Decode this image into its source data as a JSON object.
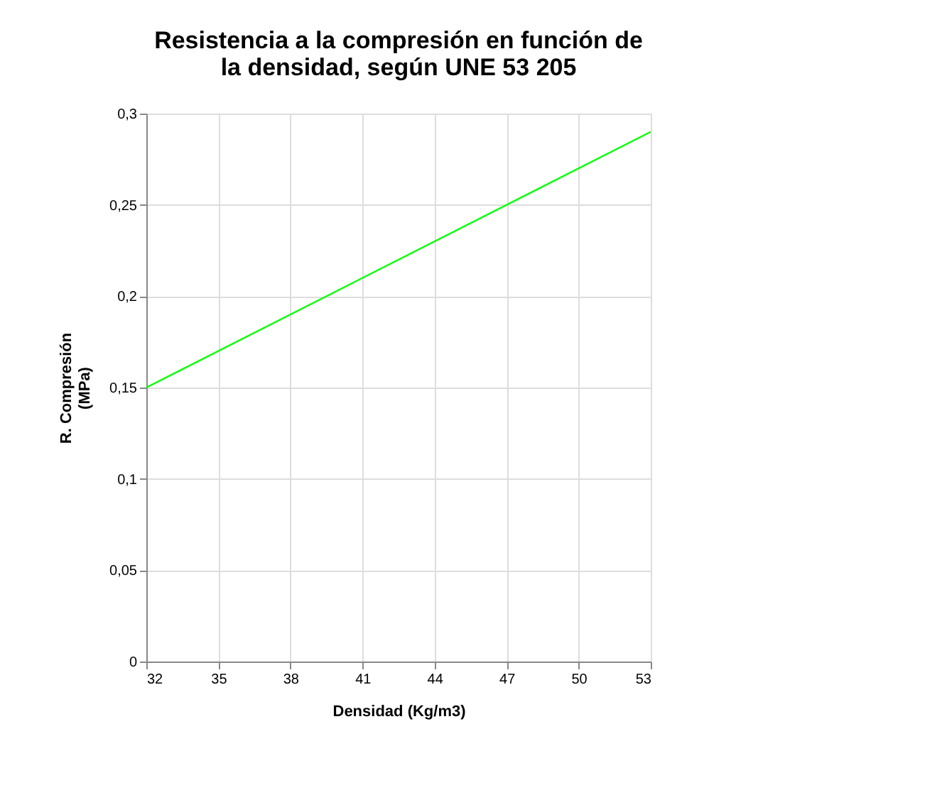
{
  "chart_data": {
    "type": "line",
    "title": "Resistencia a la compresión en función de\nla densidad, según UNE 53 205",
    "xlabel": "Densidad (Kg/m3)",
    "ylabel": "R. Compresión\n(MPa)",
    "x": [
      32,
      53
    ],
    "series": [
      {
        "color": "#00ff00",
        "values": [
          0.15,
          0.29
        ]
      }
    ],
    "xlim": [
      32,
      53
    ],
    "xticks": [
      32,
      35,
      38,
      41,
      44,
      47,
      50,
      53
    ],
    "ylim": [
      0,
      0.3
    ],
    "yticks": [
      {
        "value": 0,
        "label": "0"
      },
      {
        "value": 0.05,
        "label": "0,05"
      },
      {
        "value": 0.1,
        "label": "0,1"
      },
      {
        "value": 0.15,
        "label": "0,15"
      },
      {
        "value": 0.2,
        "label": "0,2"
      },
      {
        "value": 0.25,
        "label": "0,25"
      },
      {
        "value": 0.3,
        "label": "0,3"
      }
    ],
    "grid": true,
    "legend": false,
    "marker": "none",
    "line_style": "solid"
  }
}
